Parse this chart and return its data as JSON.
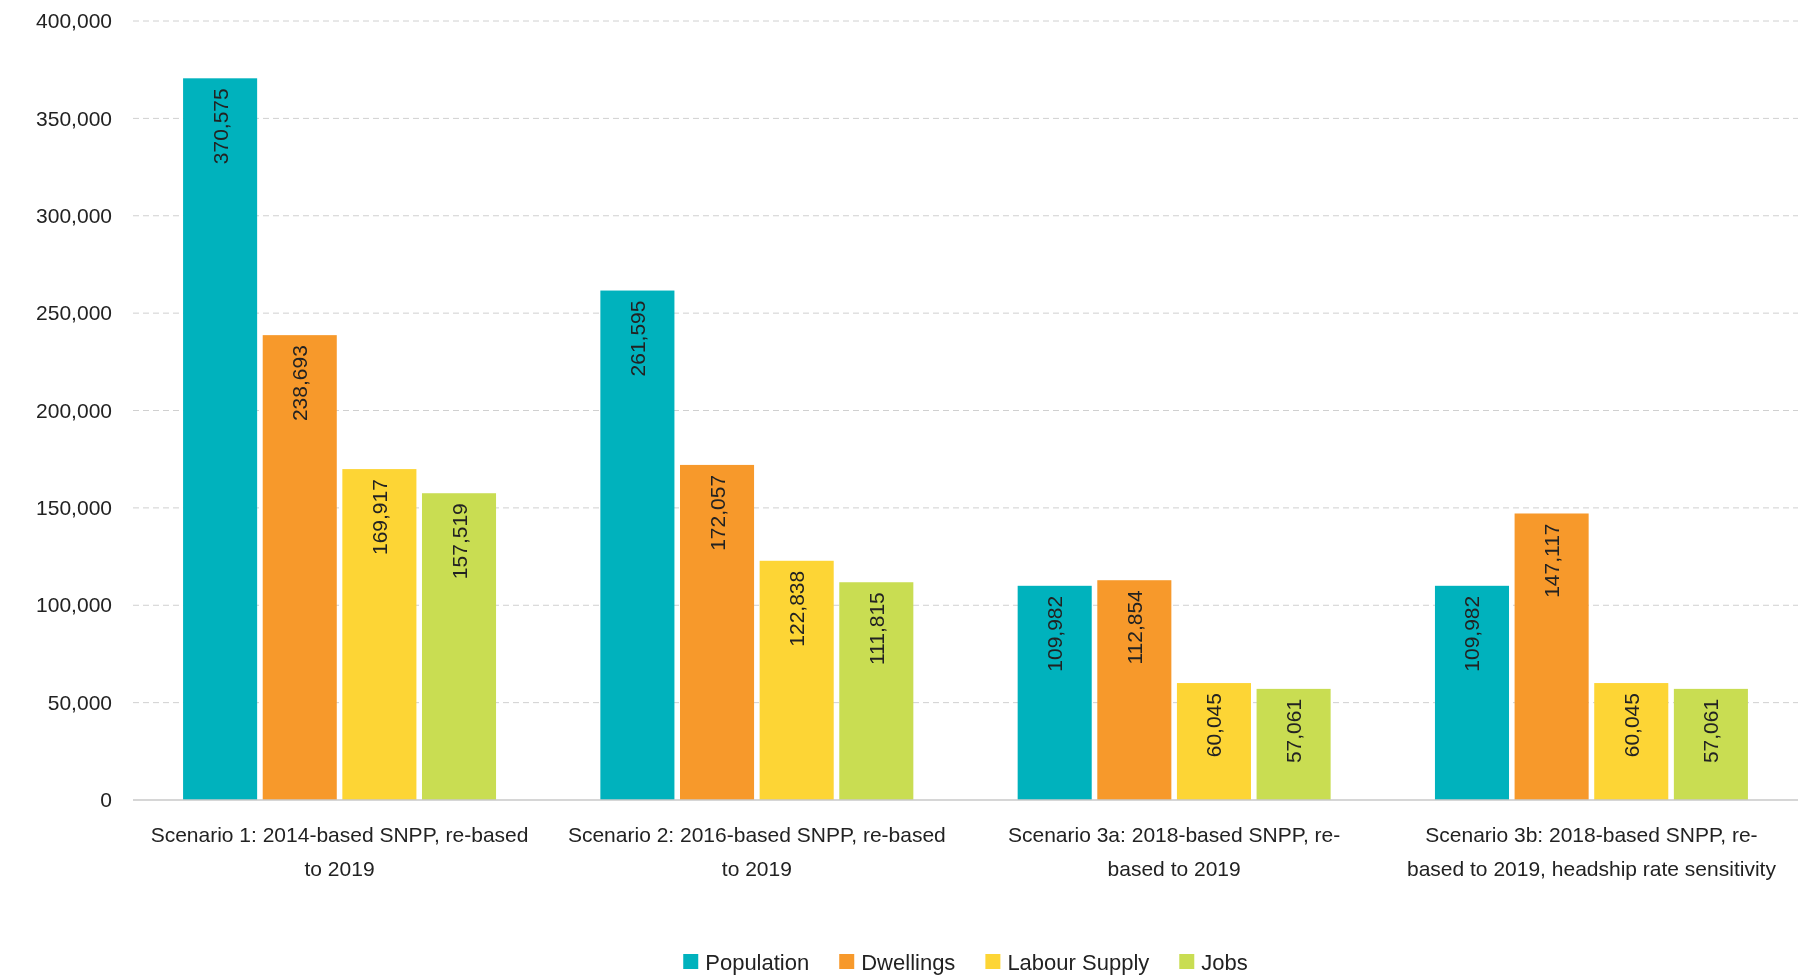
{
  "chart_data": {
    "type": "bar",
    "categories": [
      "Scenario 1: 2014-based SNPP, re-based to 2019",
      "Scenario 2: 2016-based SNPP, re-based to 2019",
      "Scenario 3a: 2018-based SNPP, re-based to 2019",
      "Scenario 3b: 2018-based SNPP, re-based to 2019, headship rate sensitivity"
    ],
    "series": [
      {
        "name": "Population",
        "color": "#00b2bd",
        "values": [
          370575,
          261595,
          109982,
          109982
        ],
        "value_labels": [
          "370,575",
          "261,595",
          "109,982",
          "109,982"
        ]
      },
      {
        "name": "Dwellings",
        "color": "#f7992b",
        "values": [
          238693,
          172057,
          112854,
          147117
        ],
        "value_labels": [
          "238,693",
          "172,057",
          "112,854",
          "147,117"
        ]
      },
      {
        "name": "Labour Supply",
        "color": "#fdd535",
        "values": [
          169917,
          122838,
          60045,
          60045
        ],
        "value_labels": [
          "169,917",
          "122,838",
          "60,045",
          "60,045"
        ]
      },
      {
        "name": "Jobs",
        "color": "#c9dd52",
        "values": [
          157519,
          111815,
          57061,
          57061
        ],
        "value_labels": [
          "157,519",
          "111,815",
          "57,061",
          "57,061"
        ]
      }
    ],
    "ylim": [
      0,
      400000
    ],
    "yticks": [
      {
        "value": 0,
        "label": "0"
      },
      {
        "value": 50000,
        "label": "50,000"
      },
      {
        "value": 100000,
        "label": "100,000"
      },
      {
        "value": 150000,
        "label": "150,000"
      },
      {
        "value": 200000,
        "label": "200,000"
      },
      {
        "value": 250000,
        "label": "250,000"
      },
      {
        "value": 300000,
        "label": "300,000"
      },
      {
        "value": 350000,
        "label": "350,000"
      },
      {
        "value": 400000,
        "label": "400,000"
      }
    ],
    "grid": "y",
    "legend": "bottom"
  }
}
